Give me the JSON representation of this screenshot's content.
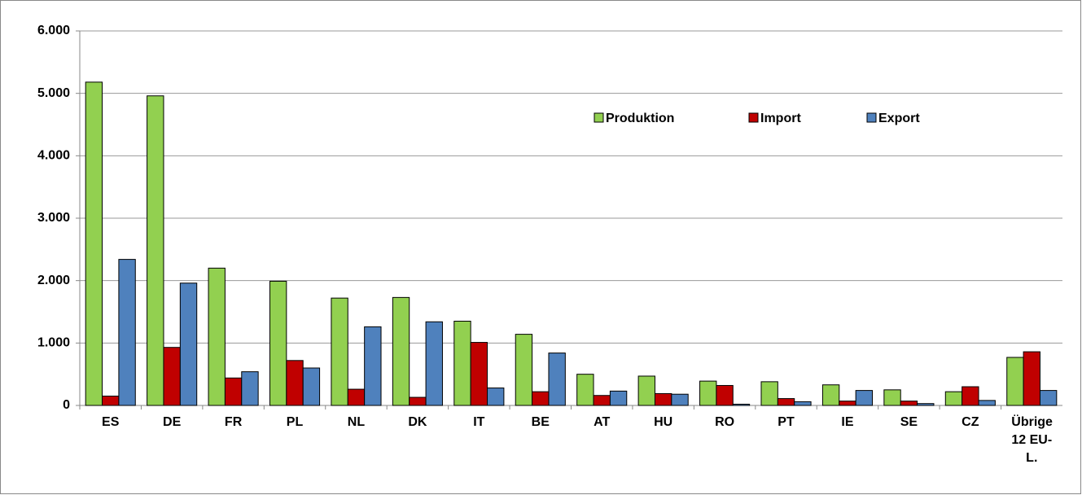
{
  "chart_data": {
    "type": "bar",
    "categories": [
      "ES",
      "DE",
      "FR",
      "PL",
      "NL",
      "DK",
      "IT",
      "BE",
      "AT",
      "HU",
      "RO",
      "PT",
      "IE",
      "SE",
      "CZ",
      "Übrige 12 EU-L."
    ],
    "series": [
      {
        "name": "Produktion",
        "color": "#92d050",
        "values": [
          5180,
          4960,
          2200,
          1990,
          1720,
          1730,
          1350,
          1140,
          500,
          470,
          390,
          380,
          330,
          250,
          220,
          770
        ]
      },
      {
        "name": "Import",
        "color": "#c00000",
        "values": [
          150,
          930,
          440,
          720,
          260,
          130,
          1010,
          220,
          160,
          190,
          320,
          110,
          70,
          70,
          300,
          860
        ]
      },
      {
        "name": "Export",
        "color": "#4f81bd",
        "values": [
          2340,
          1960,
          540,
          600,
          1260,
          1340,
          280,
          840,
          230,
          180,
          20,
          60,
          240,
          30,
          80,
          240
        ]
      }
    ],
    "ylim": [
      0,
      6000
    ],
    "yticks": [
      0,
      {
        "value": 1000,
        "label": "1.000"
      },
      {
        "value": 2000,
        "label": "2.000"
      },
      {
        "value": 3000,
        "label": "3.000"
      },
      {
        "value": 4000,
        "label": "4.000"
      },
      {
        "value": 5000,
        "label": "5.000"
      },
      {
        "value": 6000,
        "label": "6.000"
      }
    ],
    "grid": true
  }
}
